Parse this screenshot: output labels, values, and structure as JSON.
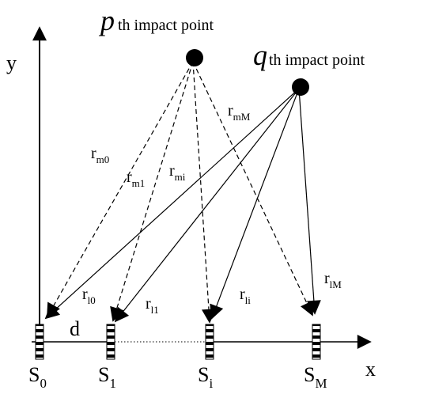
{
  "axes": {
    "x": "x",
    "y": "y"
  },
  "impact_points": [
    {
      "symbol": "p",
      "label": "th impact point"
    },
    {
      "symbol": "q",
      "label": "th impact point"
    }
  ],
  "spacing": "d",
  "sensors": [
    {
      "base": "S",
      "sub": "0"
    },
    {
      "base": "S",
      "sub": "1"
    },
    {
      "base": "S",
      "sub": "i"
    },
    {
      "base": "S",
      "sub": "M"
    }
  ],
  "distances": [
    {
      "base": "r",
      "sub": "m0"
    },
    {
      "base": "r",
      "sub": "m1"
    },
    {
      "base": "r",
      "sub": "mi"
    },
    {
      "base": "r",
      "sub": "mM"
    },
    {
      "base": "r",
      "sub": "l0"
    },
    {
      "base": "r",
      "sub": "l1"
    },
    {
      "base": "r",
      "sub": "li"
    },
    {
      "base": "r",
      "sub": "lM"
    }
  ]
}
